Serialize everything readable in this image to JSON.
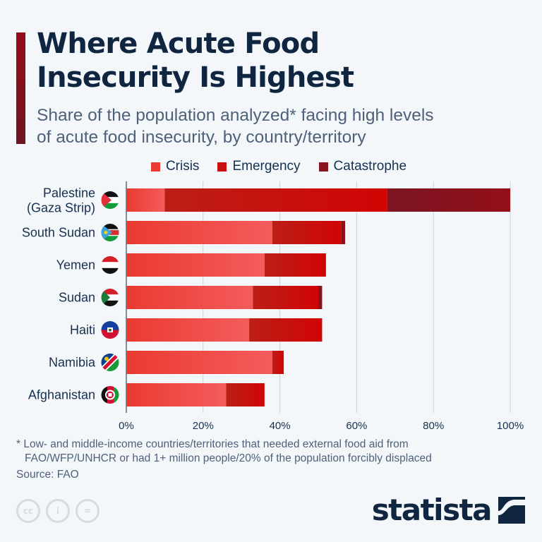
{
  "header": {
    "title_line1": "Where Acute Food",
    "title_line2": "Insecurity Is Highest",
    "subtitle_line1": "Share of the population analyzed* facing high levels",
    "subtitle_line2": "of acute food insecurity, by country/territory"
  },
  "colors": {
    "accent": "#8a1020",
    "crisis": "#ee3a35",
    "emergency": "#c8100d",
    "catastrophe": "#861422",
    "text": "#0f2540",
    "grid": "#c9d1da"
  },
  "legend": [
    {
      "label": "Crisis",
      "color": "#ee3a35"
    },
    {
      "label": "Emergency",
      "color": "#c8100d"
    },
    {
      "label": "Catastrophe",
      "color": "#861422"
    }
  ],
  "chart_data": {
    "type": "bar",
    "orientation": "horizontal",
    "stacked": true,
    "title": "Where Acute Food Insecurity Is Highest",
    "subtitle": "Share of the population analyzed* facing high levels of acute food insecurity, by country/territory",
    "categories": [
      [
        "Palestine",
        "(Gaza Strip)"
      ],
      [
        "South Sudan"
      ],
      [
        "Yemen"
      ],
      [
        "Sudan"
      ],
      [
        "Haiti"
      ],
      [
        "Namibia"
      ],
      [
        "Afghanistan"
      ]
    ],
    "flags": [
      "palestine-flag",
      "south-sudan-flag",
      "yemen-flag",
      "sudan-flag",
      "haiti-flag",
      "namibia-flag",
      "afghanistan-flag"
    ],
    "series": [
      {
        "name": "Crisis",
        "values": [
          10,
          38,
          36,
          33,
          32,
          38,
          26
        ]
      },
      {
        "name": "Emergency",
        "values": [
          58,
          18,
          16,
          17,
          19,
          3,
          10
        ]
      },
      {
        "name": "Catastrophe",
        "values": [
          32,
          1,
          0,
          1,
          0,
          0,
          0
        ]
      }
    ],
    "xlabel": "",
    "ylabel": "",
    "xlim": [
      0,
      100
    ],
    "xticks": [
      0,
      20,
      40,
      60,
      80,
      100
    ],
    "xtick_labels": [
      "0%",
      "20%",
      "40%",
      "60%",
      "80%",
      "100%"
    ],
    "grid": true,
    "legend_position": "top-center"
  },
  "footer": {
    "footnote_line1": "* Low- and middle-income countries/territories that needed external food aid from",
    "footnote_line2": "FAO/WFP/UNHCR or had 1+ million people/20% of the population forcibly displaced",
    "source": "Source: FAO",
    "license_icons": [
      "cc",
      "by",
      "nd"
    ],
    "license_glyphs": [
      "cc",
      "i",
      "="
    ],
    "brand": "statista"
  }
}
